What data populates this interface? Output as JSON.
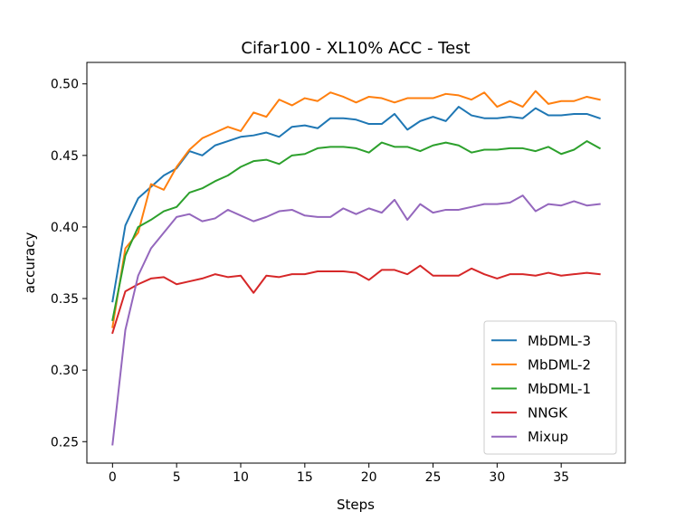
{
  "chart_data": {
    "type": "line",
    "title": "Cifar100 - XL10% ACC - Test",
    "xlabel": "Steps",
    "ylabel": "accuracy",
    "xlim": [
      -2,
      40
    ],
    "ylim": [
      0.235,
      0.515
    ],
    "xticks": [
      0,
      5,
      10,
      15,
      20,
      25,
      30,
      35
    ],
    "yticks": [
      0.25,
      0.3,
      0.35,
      0.4,
      0.45,
      0.5
    ],
    "ytick_labels": [
      "0.25",
      "0.30",
      "0.35",
      "0.40",
      "0.45",
      "0.50"
    ],
    "grid": false,
    "legend_position": "lower-right",
    "x": [
      0,
      1,
      2,
      3,
      4,
      5,
      6,
      7,
      8,
      9,
      10,
      11,
      12,
      13,
      14,
      15,
      16,
      17,
      18,
      19,
      20,
      21,
      22,
      23,
      24,
      25,
      26,
      27,
      28,
      29,
      30,
      31,
      32,
      33,
      34,
      35,
      36,
      37,
      38
    ],
    "series": [
      {
        "name": "MbDML-3",
        "color": "#1f77b4",
        "values": [
          0.348,
          0.401,
          0.42,
          0.428,
          0.436,
          0.441,
          0.453,
          0.45,
          0.457,
          0.46,
          0.463,
          0.464,
          0.466,
          0.463,
          0.47,
          0.471,
          0.469,
          0.476,
          0.476,
          0.475,
          0.472,
          0.472,
          0.479,
          0.468,
          0.474,
          0.477,
          0.474,
          0.484,
          0.478,
          0.476,
          0.476,
          0.477,
          0.476,
          0.483,
          0.478,
          0.478,
          0.479,
          0.479,
          0.476
        ]
      },
      {
        "name": "MbDML-2",
        "color": "#ff7f0e",
        "values": [
          0.33,
          0.385,
          0.396,
          0.43,
          0.426,
          0.442,
          0.454,
          0.462,
          0.466,
          0.47,
          0.467,
          0.48,
          0.477,
          0.489,
          0.485,
          0.49,
          0.488,
          0.494,
          0.491,
          0.487,
          0.491,
          0.49,
          0.487,
          0.49,
          0.49,
          0.49,
          0.493,
          0.492,
          0.489,
          0.494,
          0.484,
          0.488,
          0.484,
          0.495,
          0.486,
          0.488,
          0.488,
          0.491,
          0.489
        ]
      },
      {
        "name": "MbDML-1",
        "color": "#2ca02c",
        "values": [
          0.335,
          0.38,
          0.4,
          0.405,
          0.411,
          0.414,
          0.424,
          0.427,
          0.432,
          0.436,
          0.442,
          0.446,
          0.447,
          0.444,
          0.45,
          0.451,
          0.455,
          0.456,
          0.456,
          0.455,
          0.452,
          0.459,
          0.456,
          0.456,
          0.453,
          0.457,
          0.459,
          0.457,
          0.452,
          0.454,
          0.454,
          0.455,
          0.455,
          0.453,
          0.456,
          0.451,
          0.454,
          0.46,
          0.455
        ]
      },
      {
        "name": "NNGK",
        "color": "#d62728",
        "values": [
          0.326,
          0.355,
          0.36,
          0.364,
          0.365,
          0.36,
          0.362,
          0.364,
          0.367,
          0.365,
          0.366,
          0.354,
          0.366,
          0.365,
          0.367,
          0.367,
          0.369,
          0.369,
          0.369,
          0.368,
          0.363,
          0.37,
          0.37,
          0.367,
          0.373,
          0.366,
          0.366,
          0.366,
          0.371,
          0.367,
          0.364,
          0.367,
          0.367,
          0.366,
          0.368,
          0.366,
          0.367,
          0.368,
          0.367
        ]
      },
      {
        "name": "Mixup",
        "color": "#9467bd",
        "values": [
          0.248,
          0.328,
          0.366,
          0.385,
          0.396,
          0.407,
          0.409,
          0.404,
          0.406,
          0.412,
          0.408,
          0.404,
          0.407,
          0.411,
          0.412,
          0.408,
          0.407,
          0.407,
          0.413,
          0.409,
          0.413,
          0.41,
          0.419,
          0.405,
          0.416,
          0.41,
          0.412,
          0.412,
          0.414,
          0.416,
          0.416,
          0.417,
          0.422,
          0.411,
          0.416,
          0.415,
          0.418,
          0.415,
          0.416
        ]
      }
    ]
  }
}
